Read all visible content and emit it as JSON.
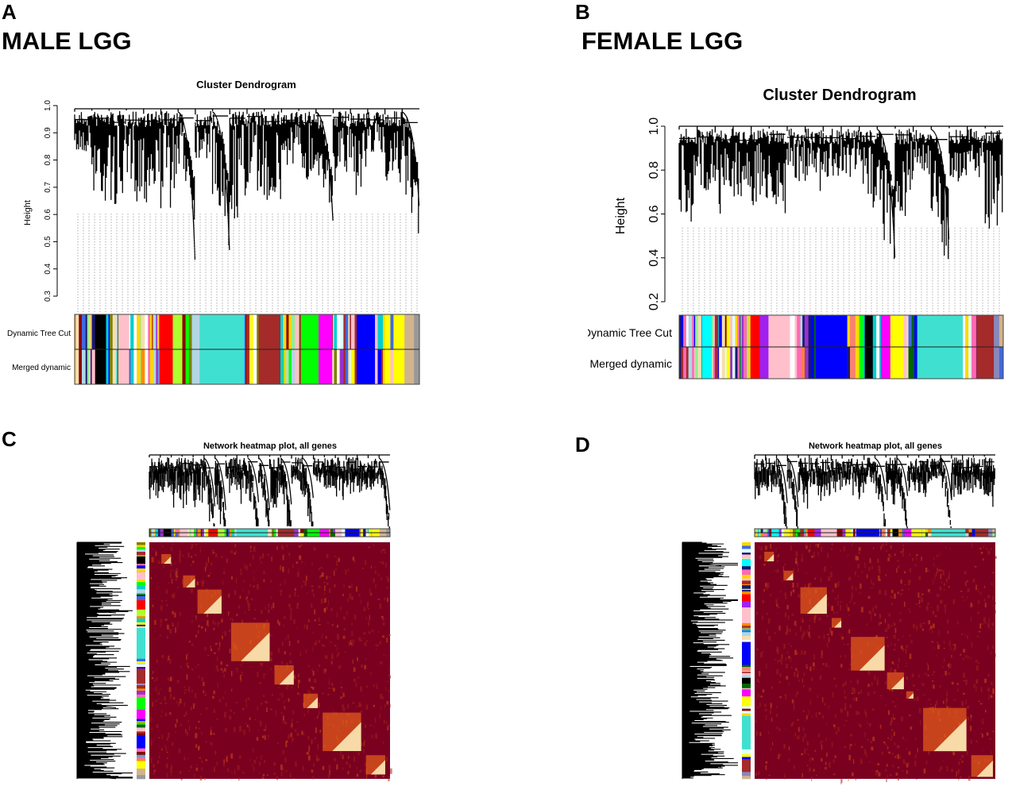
{
  "panels": {
    "A": {
      "letter": "A",
      "title": "MALE LGG"
    },
    "B": {
      "letter": "B",
      "title": "FEMALE LGG"
    },
    "C": {
      "letter": "C"
    },
    "D": {
      "letter": "D"
    }
  },
  "dendrogram_male": {
    "title": "Cluster Dendrogram",
    "ylabel": "Height",
    "yticks": [
      "0.3",
      "0.4",
      "0.5",
      "0.6",
      "0.7",
      "0.8",
      "0.9",
      "1.0"
    ],
    "row_labels": [
      "Dynamic Tree Cut",
      "Merged dynamic"
    ],
    "modules": [
      [
        "*",
        75
      ],
      [
        "#000000",
        40
      ],
      [
        "*",
        45
      ],
      [
        "#ffc0cb",
        40
      ],
      [
        "*",
        110
      ],
      [
        "#ff0000",
        50
      ],
      [
        "#adff2f",
        35
      ],
      [
        "*",
        63
      ],
      [
        "#40e0d0",
        165
      ],
      [
        "*",
        52
      ],
      [
        "#a52a2a",
        80
      ],
      [
        "*",
        75
      ],
      [
        "#00ff00",
        65
      ],
      [
        "#ff00ff",
        50
      ],
      [
        "*",
        90
      ],
      [
        "#0000ff",
        67
      ],
      [
        "*",
        68
      ],
      [
        "#ffff00",
        40
      ],
      [
        "#d2b48c",
        35
      ],
      [
        "#999999",
        20
      ]
    ]
  },
  "dendrogram_female": {
    "title": "Cluster Dendrogram",
    "ylabel": "Height",
    "yticks": [
      "0.2",
      "0.4",
      "0.6",
      "0.8",
      "1.0"
    ],
    "row_labels": [
      "Dynamic Tree Cut",
      "Merged dynamic"
    ],
    "modules": [
      [
        "*",
        85
      ],
      [
        "#00ffff",
        37
      ],
      [
        "*",
        143
      ],
      [
        "#ff0000",
        35
      ],
      [
        "#a020f0",
        32
      ],
      [
        "#ffc0cb",
        80
      ],
      [
        "*",
        96
      ],
      [
        "#0000ff",
        117
      ],
      [
        "*",
        10
      ],
      [
        "#fa8072",
        20
      ],
      [
        "*",
        35
      ],
      [
        "#000000",
        30
      ],
      [
        "*",
        30
      ],
      [
        "#ff00ff",
        35
      ],
      [
        "#ffff00",
        50
      ],
      [
        "*",
        50
      ],
      [
        "#40e0d0",
        170
      ],
      [
        "*",
        50
      ],
      [
        "#a52a2a",
        65
      ],
      [
        "#8888bb",
        20
      ],
      [
        "#d2b48c",
        15
      ]
    ]
  },
  "heatmap_male": {
    "title": "Network heatmap plot, all genes"
  },
  "heatmap_female": {
    "title": "Network heatmap plot, all genes"
  },
  "colors": {
    "heat_bg": "#7a0020",
    "heat_hot": "#fff5c0",
    "heat_mid": "#e8601a"
  }
}
